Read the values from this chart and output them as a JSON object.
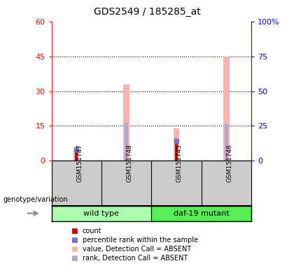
{
  "title": "GDS2549 / 185285_at",
  "samples": [
    "GSM151747",
    "GSM151748",
    "GSM151745",
    "GSM151746"
  ],
  "left_ylim": [
    0,
    60
  ],
  "right_ylim": [
    0,
    100
  ],
  "left_yticks": [
    0,
    15,
    30,
    45,
    60
  ],
  "right_yticks": [
    0,
    25,
    50,
    75,
    100
  ],
  "left_yticklabels": [
    "0",
    "15",
    "30",
    "45",
    "60"
  ],
  "right_yticklabels": [
    "0",
    "25",
    "50",
    "75",
    "100%"
  ],
  "count_values": [
    5,
    0,
    9,
    0
  ],
  "rank_values": [
    8,
    0,
    14,
    0
  ],
  "absent_value_values": [
    5,
    33,
    14,
    45
  ],
  "absent_rank_values": [
    8,
    27,
    16,
    26
  ],
  "count_color": "#CC0000",
  "rank_color": "#7777BB",
  "absent_value_color": "#FFB0B0",
  "absent_rank_color": "#AAAACC",
  "absent_bar_width": 0.12,
  "count_bar_width": 0.06,
  "rank_bar_width": 0.06,
  "legend_items": [
    {
      "label": "count",
      "color": "#CC0000"
    },
    {
      "label": "percentile rank within the sample",
      "color": "#7777BB"
    },
    {
      "label": "value, Detection Call = ABSENT",
      "color": "#FFB0B0"
    },
    {
      "label": "rank, Detection Call = ABSENT",
      "color": "#AAAACC"
    }
  ],
  "genotype_label": "genotype/variation",
  "group_label_wild": "wild type",
  "group_label_mutant": "daf-19 mutant",
  "group_color_wild": "#AAFFAA",
  "group_color_mutant": "#55EE55",
  "sample_bg_color": "#CCCCCC",
  "grid_dotted_ticks": [
    15,
    30,
    45
  ]
}
